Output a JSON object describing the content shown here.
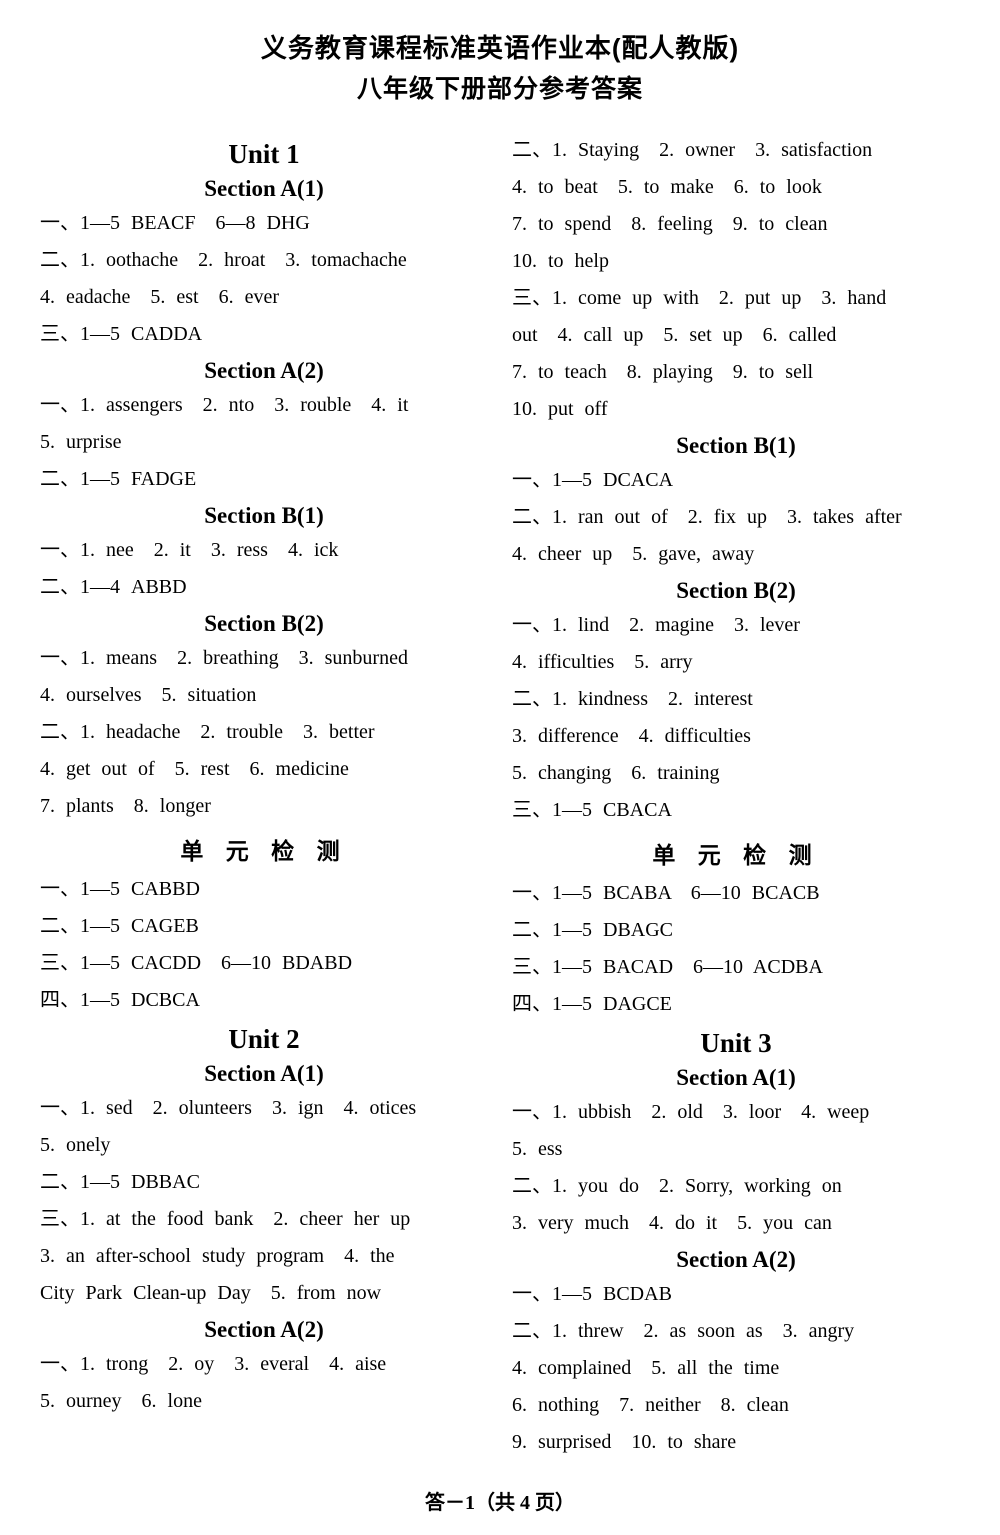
{
  "title1": "义务教育课程标准英语作业本(配人教版)",
  "title2": "八年级下册部分参考答案",
  "footer": "答－1（共 4 页）",
  "left": {
    "u1": "Unit 1",
    "sA1": "Section A(1)",
    "sA1_1": "一、1—5 BEACF　6—8 DHG",
    "sA1_2": "二、1. oothache　2. hroat　3. tomachache",
    "sA1_3": "4. eadache　5. est　6. ever",
    "sA1_4": "三、1—5 CADDA",
    "sA2": "Section A(2)",
    "sA2_1": "一、1. assengers　2. nto　3. rouble　4. it",
    "sA2_2": "5. urprise",
    "sA2_3": "二、1—5 FADGE",
    "sB1": "Section B(1)",
    "sB1_1": "一、1. nee　2. it　3. ress　4. ick",
    "sB1_2": "二、1—4 ABBD",
    "sB2": "Section B(2)",
    "sB2_1": "一、1. means　2. breathing　3. sunburned",
    "sB2_2": "4. ourselves　5. situation",
    "sB2_3": "二、1. headache　2. trouble　3. better",
    "sB2_4": "4. get out of　5. rest　6. medicine",
    "sB2_5": "7. plants　8. longer",
    "test1": "单 元 检 测",
    "t1_1": "一、1—5 CABBD",
    "t1_2": "二、1—5 CAGEB",
    "t1_3": "三、1—5 CACDD　6—10 BDABD",
    "t1_4": "四、1—5 DCBCA",
    "u2": "Unit 2",
    "u2sA1": "Section A(1)",
    "u2sA1_1": "一、1. sed　2. olunteers　3. ign　4. otices",
    "u2sA1_2": "5. onely",
    "u2sA1_3": "二、1—5 DBBAC",
    "u2sA1_4": "三、1. at the food bank　2. cheer her up",
    "u2sA1_5": "3. an after-school study program　4. the",
    "u2sA1_6": "City Park Clean-up Day　5. from now",
    "u2sA2": "Section A(2)",
    "u2sA2_1": "一、1. trong　2. oy　3. everal　4. aise",
    "u2sA2_2": "5. ourney　6. lone"
  },
  "right": {
    "r1": "二、1. Staying　2. owner　3. satisfaction",
    "r2": "4. to beat　5. to make　6. to look",
    "r3": "7. to spend　8. feeling　9. to clean",
    "r4": "10. to help",
    "r5": "三、1. come up with　2. put up　3. hand",
    "r6": "out　4. call up　5. set up　6. called",
    "r7": "7. to teach　8. playing　9. to sell",
    "r8": "10. put off",
    "sB1": "Section B(1)",
    "sB1_1": "一、1—5 DCACA",
    "sB1_2": "二、1. ran out of　2. fix up　3. takes after",
    "sB1_3": "4. cheer up　5. gave, away",
    "sB2": "Section B(2)",
    "sB2_1": "一、1. lind　2. magine　3. lever",
    "sB2_2": "4. ifficulties　5. arry",
    "sB2_3": "二、1. kindness　2. interest",
    "sB2_4": "3. difference　4. difficulties",
    "sB2_5": "5. changing　6. training",
    "sB2_6": "三、1—5 CBACA",
    "test2": "单 元 检 测",
    "t2_1": "一、1—5 BCABA　6—10 BCACB",
    "t2_2": "二、1—5 DBAGC",
    "t2_3": "三、1—5 BACAD　6—10 ACDBA",
    "t2_4": "四、1—5 DAGCE",
    "u3": "Unit 3",
    "u3sA1": "Section A(1)",
    "u3sA1_1": "一、1. ubbish　2. old　3. loor　4. weep",
    "u3sA1_2": "5. ess",
    "u3sA1_3": "二、1. you do　2. Sorry, working on",
    "u3sA1_4": "3. very much　4. do it　5. you can",
    "u3sA2": "Section A(2)",
    "u3sA2_1": "一、1—5 BCDAB",
    "u3sA2_2": "二、1. threw　2. as soon as　3. angry",
    "u3sA2_3": "4. complained　5. all the time",
    "u3sA2_4": "6. nothing　7. neither　8. clean",
    "u3sA2_5": "9. surprised　10. to share"
  }
}
